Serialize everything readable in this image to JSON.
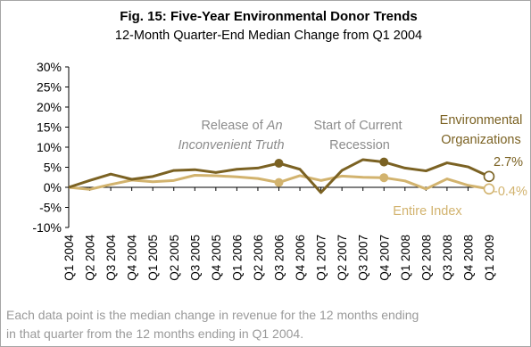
{
  "chart_data": {
    "type": "line",
    "title": "Fig. 15: Five-Year Environmental Donor Trends",
    "subtitle": "12-Month Quarter-End Median Change from Q1 2004",
    "categories": [
      "Q1 2004",
      "Q2 2004",
      "Q3 2004",
      "Q4 2004",
      "Q1 2005",
      "Q2 2005",
      "Q3 2005",
      "Q4 2005",
      "Q1 2006",
      "Q2 2006",
      "Q3 2006",
      "Q4 2006",
      "Q1 2007",
      "Q2 2007",
      "Q3 2007",
      "Q4 2007",
      "Q1 2008",
      "Q2 2008",
      "Q3 2008",
      "Q4 2008",
      "Q1 2009"
    ],
    "series": [
      {
        "name": "Environmental Organizations",
        "color": "#7b6223",
        "values": [
          0,
          1.7,
          3.3,
          2.0,
          2.7,
          4.2,
          4.4,
          3.7,
          4.5,
          4.8,
          6.0,
          4.5,
          -1.3,
          4.2,
          6.9,
          6.3,
          4.8,
          4.1,
          6.1,
          5.1,
          2.7
        ]
      },
      {
        "name": "Entire Index",
        "color": "#d2b36e",
        "values": [
          0,
          -0.5,
          0.7,
          1.8,
          1.4,
          1.7,
          3.0,
          2.9,
          2.6,
          2.2,
          1.2,
          2.9,
          1.7,
          2.8,
          2.5,
          2.4,
          1.6,
          -0.4,
          2.1,
          0.5,
          -0.4
        ]
      }
    ],
    "ylim": [
      -10,
      30
    ],
    "yticks": [
      "30%",
      "25%",
      "20%",
      "15%",
      "10%",
      "5%",
      "0%",
      "-5%",
      "-10%"
    ],
    "grid": false,
    "annotations": {
      "event1_line1": "Release of ",
      "event1_italic": "An",
      "event1_line2": "Inconvenient Truth",
      "event2_line1": "Start of Current",
      "event2_line2": "Recession",
      "env_label_line1": "Environmental",
      "env_label_line2": "Organizations",
      "env_end_value": "2.7%",
      "idx_label": "Entire Index",
      "idx_end_value": "-0.4%"
    },
    "markers": {
      "env_filled_indices": [
        10,
        15
      ],
      "idx_filled_indices": [
        10,
        15
      ],
      "open_end_index": 20
    }
  },
  "footnote": {
    "line1": "Each data point is the median change in revenue for the 12 months ending",
    "line2": "in that quarter from the 12 months ending in Q1 2004."
  }
}
